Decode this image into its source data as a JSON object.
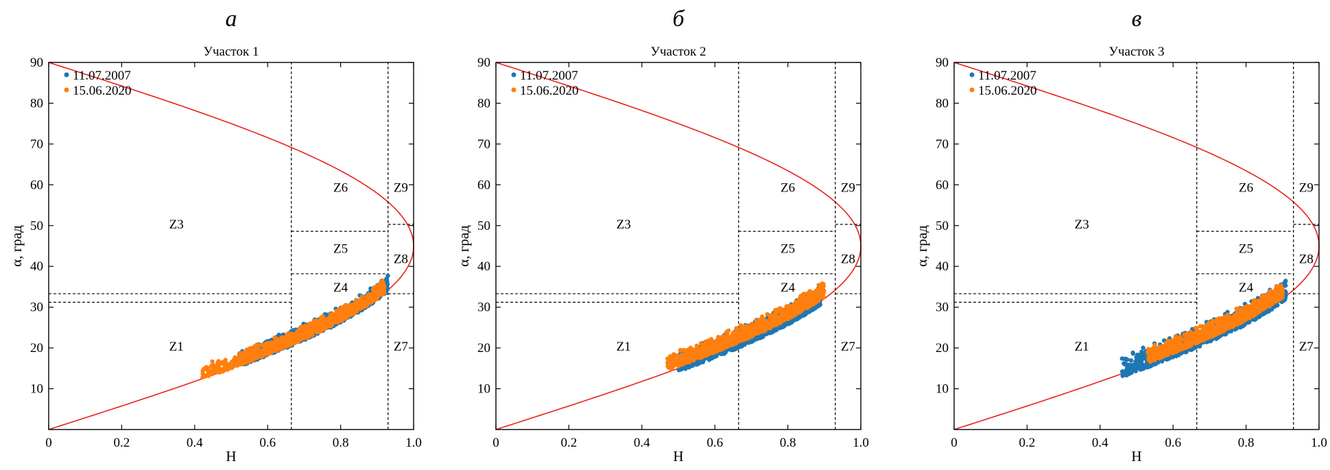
{
  "colors": {
    "series_2007": "#1f77b4",
    "series_2020": "#ff7f0e",
    "curve": "#e8211b",
    "zone_lines": "#000000"
  },
  "chart_data": [
    {
      "type": "scatter",
      "panel_letter": "а",
      "title": "Участок 1",
      "xlabel": "H",
      "ylabel": "α, град",
      "xlim": [
        0,
        1.0
      ],
      "ylim": [
        0,
        90
      ],
      "x_ticks": [
        "0",
        "0.2",
        "0.4",
        "0.6",
        "0.8",
        "1.0"
      ],
      "y_ticks": [
        "10",
        "20",
        "30",
        "40",
        "50",
        "60",
        "70",
        "80",
        "90"
      ],
      "legend_position": "top-left",
      "grid": false,
      "zone_labels": [
        "Z1",
        "Z3",
        "Z4",
        "Z5",
        "Z6",
        "Z7",
        "Z8",
        "Z9"
      ],
      "series": [
        {
          "name": "11.07.2007",
          "h_range": [
            0.52,
            0.93
          ],
          "alpha_low_offset": -0.3,
          "alpha_spread": 3.0
        },
        {
          "name": "15.06.2020",
          "h_range": [
            0.42,
            0.92
          ],
          "alpha_low_offset": 0.0,
          "alpha_spread": 2.5
        }
      ]
    },
    {
      "type": "scatter",
      "panel_letter": "б",
      "title": "Участок 2",
      "xlabel": "H",
      "ylabel": "α, град",
      "xlim": [
        0,
        1.0
      ],
      "ylim": [
        0,
        90
      ],
      "x_ticks": [
        "0",
        "0.2",
        "0.4",
        "0.6",
        "0.8",
        "1.0"
      ],
      "y_ticks": [
        "10",
        "20",
        "30",
        "40",
        "50",
        "60",
        "70",
        "80",
        "90"
      ],
      "legend_position": "top-left",
      "grid": false,
      "zone_labels": [
        "Z1",
        "Z3",
        "Z4",
        "Z5",
        "Z6",
        "Z7",
        "Z8",
        "Z9"
      ],
      "series": [
        {
          "name": "11.07.2007",
          "h_range": [
            0.5,
            0.89
          ],
          "alpha_low_offset": -0.8,
          "alpha_spread": 3.5
        },
        {
          "name": "15.06.2020",
          "h_range": [
            0.47,
            0.9
          ],
          "alpha_low_offset": 0.5,
          "alpha_spread": 3.0
        }
      ]
    },
    {
      "type": "scatter",
      "panel_letter": "в",
      "title": "Участок 3",
      "xlabel": "H",
      "ylabel": "α, град",
      "xlim": [
        0,
        1.0
      ],
      "ylim": [
        0,
        90
      ],
      "x_ticks": [
        "0",
        "0.2",
        "0.4",
        "0.6",
        "0.8",
        "1.0"
      ],
      "y_ticks": [
        "10",
        "20",
        "30",
        "40",
        "50",
        "60",
        "70",
        "80",
        "90"
      ],
      "legend_position": "top-left",
      "grid": false,
      "zone_labels": [
        "Z1",
        "Z3",
        "Z4",
        "Z5",
        "Z6",
        "Z7",
        "Z8",
        "Z9"
      ],
      "series": [
        {
          "name": "11.07.2007",
          "h_range": [
            0.46,
            0.91
          ],
          "alpha_low_offset": -0.8,
          "alpha_spread": 4.0
        },
        {
          "name": "15.06.2020",
          "h_range": [
            0.53,
            0.9
          ],
          "alpha_low_offset": 0.3,
          "alpha_spread": 3.0
        }
      ]
    }
  ]
}
